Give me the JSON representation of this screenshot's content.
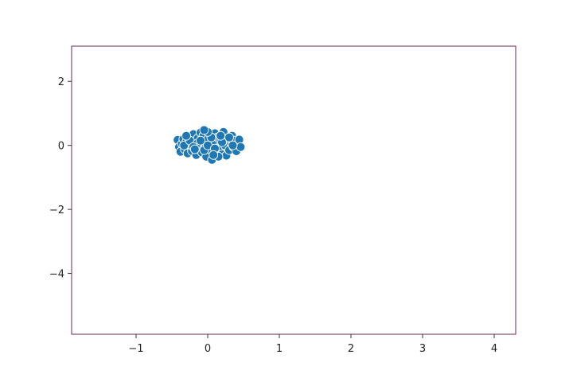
{
  "chart_data": {
    "type": "scatter",
    "title": "",
    "xlabel": "",
    "ylabel": "",
    "xlim": [
      -1.9,
      4.3
    ],
    "ylim": [
      -5.9,
      3.1
    ],
    "xticks": [
      -1,
      0,
      1,
      2,
      3,
      4
    ],
    "yticks": [
      2,
      0,
      -2,
      -4
    ],
    "xtick_labels": [
      "−1",
      "0",
      "1",
      "2",
      "3",
      "4"
    ],
    "ytick_labels": [
      "2",
      "0",
      "−2",
      "−4"
    ],
    "grid": false,
    "legend": "none",
    "marker_color": "#1f77b4",
    "marker_edge_color": "#ffffff",
    "axes_edge_color": "#6b2a55",
    "series": [
      {
        "points": [
          [
            -0.42,
            0.17
          ],
          [
            -0.4,
            -0.05
          ],
          [
            -0.38,
            -0.2
          ],
          [
            -0.36,
            0.05
          ],
          [
            -0.34,
            0.2
          ],
          [
            -0.32,
            -0.12
          ],
          [
            -0.3,
            0.1
          ],
          [
            -0.28,
            -0.25
          ],
          [
            -0.26,
            0.28
          ],
          [
            -0.24,
            0.0
          ],
          [
            -0.22,
            -0.18
          ],
          [
            -0.2,
            0.35
          ],
          [
            -0.18,
            0.12
          ],
          [
            -0.16,
            -0.3
          ],
          [
            -0.14,
            0.22
          ],
          [
            -0.12,
            -0.05
          ],
          [
            -0.1,
            0.4
          ],
          [
            -0.08,
            -0.22
          ],
          [
            -0.06,
            0.3
          ],
          [
            -0.04,
            0.08
          ],
          [
            -0.02,
            -0.35
          ],
          [
            0.0,
            0.18
          ],
          [
            0.02,
            -0.12
          ],
          [
            0.04,
            0.35
          ],
          [
            0.06,
            -0.45
          ],
          [
            0.08,
            0.05
          ],
          [
            0.1,
            0.38
          ],
          [
            0.12,
            -0.2
          ],
          [
            0.14,
            0.25
          ],
          [
            0.16,
            -0.08
          ],
          [
            0.18,
            0.12
          ],
          [
            0.2,
            -0.28
          ],
          [
            0.22,
            0.42
          ],
          [
            0.24,
            0.0
          ],
          [
            0.26,
            -0.32
          ],
          [
            0.28,
            0.22
          ],
          [
            0.3,
            -0.15
          ],
          [
            0.32,
            0.1
          ],
          [
            0.34,
            0.3
          ],
          [
            0.36,
            -0.05
          ],
          [
            0.38,
            0.15
          ],
          [
            0.4,
            -0.18
          ],
          [
            0.42,
            0.05
          ],
          [
            0.44,
            0.18
          ],
          [
            0.46,
            -0.05
          ],
          [
            -0.33,
            0.0
          ],
          [
            -0.25,
            0.15
          ],
          [
            -0.15,
            0.05
          ],
          [
            -0.05,
            -0.15
          ],
          [
            0.05,
            0.25
          ],
          [
            0.15,
            -0.35
          ],
          [
            0.25,
            0.2
          ],
          [
            0.35,
            0.0
          ],
          [
            -0.2,
            -0.05
          ],
          [
            0.0,
            0.0
          ],
          [
            0.1,
            -0.1
          ],
          [
            -0.1,
            0.15
          ],
          [
            0.2,
            0.1
          ],
          [
            -0.3,
            0.3
          ],
          [
            0.3,
            0.25
          ],
          [
            0.0,
            0.42
          ],
          [
            -0.05,
            0.48
          ],
          [
            0.08,
            -0.3
          ],
          [
            -0.18,
            -0.12
          ],
          [
            0.18,
            0.3
          ]
        ]
      }
    ]
  }
}
